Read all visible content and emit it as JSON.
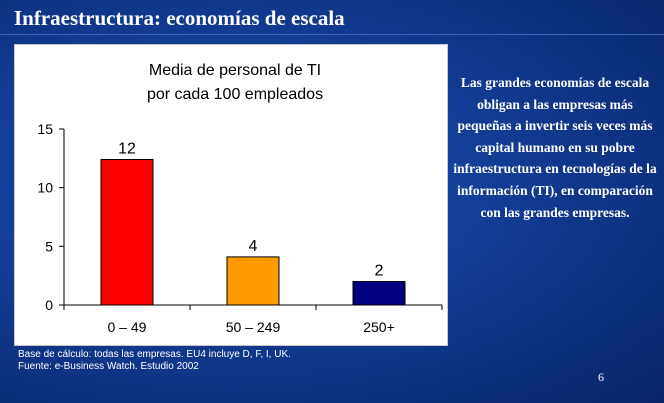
{
  "slide": {
    "title": "Infraestructura: economías de escala",
    "side_text": "Las grandes economías de escala obligan a las empresas más pequeñas a invertir seis veces más capital humano en su pobre infraestructura en tecnologías de la información (TI), en comparación con las grandes empresas.",
    "footnote_1": "Base de cálculo: todas las empresas. EU4 incluye D, F, I, UK.",
    "footnote_2": "Fuente: e-Business Watch. Estudio 2002",
    "page_number": "6"
  },
  "chart_data": {
    "type": "bar",
    "title_lines": [
      "Media de personal de TI",
      "por cada 100 empleados"
    ],
    "categories": [
      "0 – 49",
      "50 – 249",
      "250+"
    ],
    "values": [
      12.4,
      4.1,
      2.0
    ],
    "data_labels": [
      "12",
      "4",
      "2"
    ],
    "bar_colors": [
      "#ff0000",
      "#ff9900",
      "#000080"
    ],
    "ylim": [
      0,
      15
    ],
    "yticks": [
      0,
      5,
      10,
      15
    ],
    "grid": false,
    "legend": false
  }
}
